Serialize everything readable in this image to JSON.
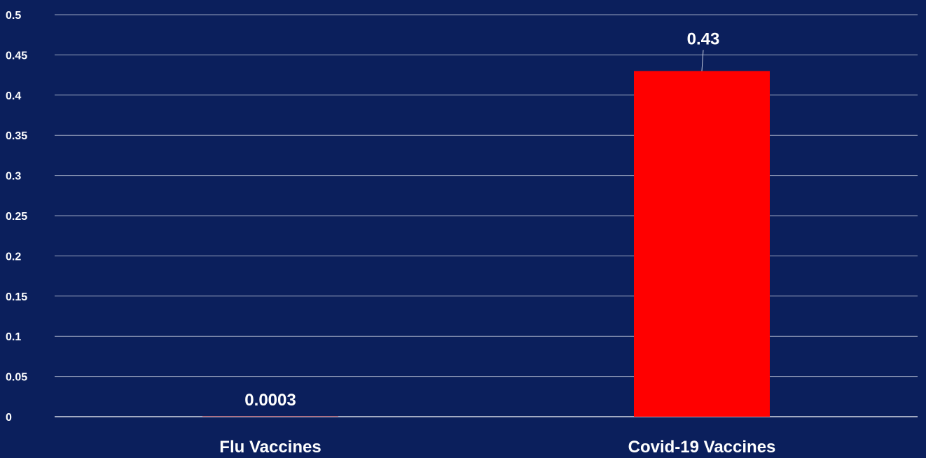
{
  "chart_data": {
    "type": "bar",
    "categories": [
      "Flu Vaccines",
      "Covid-19 Vaccines"
    ],
    "values": [
      0.0003,
      0.43
    ],
    "data_labels": [
      "0.0003",
      "0.43"
    ],
    "ylim": [
      0,
      0.5
    ],
    "yticks": [
      0,
      0.05,
      0.1,
      0.15,
      0.2,
      0.25,
      0.3,
      0.35,
      0.4,
      0.45,
      0.5
    ],
    "ytick_labels": [
      "0",
      "0.05",
      "0.1",
      "0.15",
      "0.2",
      "0.25",
      "0.3",
      "0.35",
      "0.4",
      "0.45",
      "0.5"
    ],
    "grid": true,
    "legend": "none",
    "colors": {
      "background": "#0b1f5c",
      "bar": "#ff0000",
      "text": "#ffffff",
      "grid": "#c9cfe0"
    }
  }
}
